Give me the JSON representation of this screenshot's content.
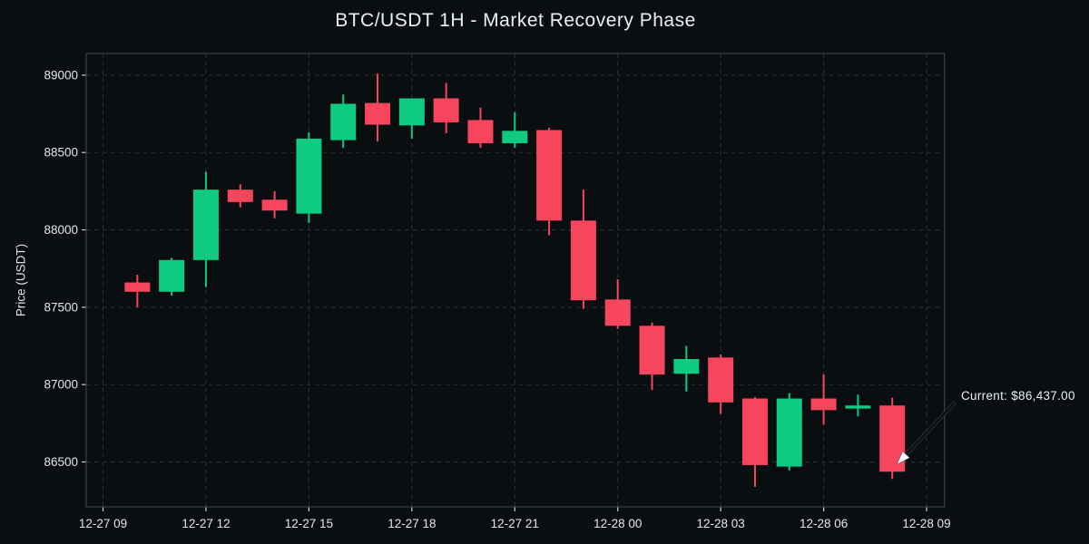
{
  "title": "BTC/USDT 1H - Market Recovery Phase",
  "y_axis_label": "Price (USDT)",
  "annotation": {
    "label": "Current: $86,437.00",
    "current_price": 86437
  },
  "colors": {
    "background": "#0b0e11",
    "up": "#0ecb81",
    "down": "#f6465d",
    "grid": "#2b313b",
    "spine": "#39404c",
    "tick_mark": "#c9ced5",
    "tick_text": "#e2e5ea",
    "arrow_shaft": "#0e1013",
    "arrow_shaft_edge": "#3c424b",
    "arrow_head": "#f4f5f7"
  },
  "chart_data": {
    "type": "candlestick",
    "symbol": "BTC/USDT",
    "interval": "1H",
    "title": "BTC/USDT 1H - Market Recovery Phase",
    "ylabel": "Price (USDT)",
    "grid": true,
    "ylim": [
      86210,
      89140
    ],
    "y_ticks": [
      89000,
      88500,
      88000,
      87500,
      87000,
      86500
    ],
    "x_tick_labels": [
      "12-27 09",
      "12-27 12",
      "12-27 15",
      "12-27 18",
      "12-27 21",
      "12-28 00",
      "12-28 03",
      "12-28 06",
      "12-28 09"
    ],
    "candles": [
      {
        "time": "12-27 10:00",
        "open": 87660,
        "high": 87710,
        "low": 87500,
        "close": 87600
      },
      {
        "time": "12-27 11:00",
        "open": 87600,
        "high": 87820,
        "low": 87575,
        "close": 87805
      },
      {
        "time": "12-27 12:00",
        "open": 87805,
        "high": 88375,
        "low": 87630,
        "close": 88260
      },
      {
        "time": "12-27 13:00",
        "open": 88260,
        "high": 88295,
        "low": 88145,
        "close": 88180
      },
      {
        "time": "12-27 14:00",
        "open": 88195,
        "high": 88250,
        "low": 88075,
        "close": 88125
      },
      {
        "time": "12-27 15:00",
        "open": 88105,
        "high": 88630,
        "low": 88045,
        "close": 88590
      },
      {
        "time": "12-27 16:00",
        "open": 88580,
        "high": 88875,
        "low": 88530,
        "close": 88815
      },
      {
        "time": "12-27 17:00",
        "open": 88820,
        "high": 89010,
        "low": 88570,
        "close": 88680
      },
      {
        "time": "12-27 18:00",
        "open": 88675,
        "high": 88850,
        "low": 88590,
        "close": 88850
      },
      {
        "time": "12-27 19:00",
        "open": 88850,
        "high": 88950,
        "low": 88625,
        "close": 88695
      },
      {
        "time": "12-27 20:00",
        "open": 88710,
        "high": 88790,
        "low": 88530,
        "close": 88560
      },
      {
        "time": "12-27 21:00",
        "open": 88560,
        "high": 88760,
        "low": 88530,
        "close": 88640
      },
      {
        "time": "12-27 22:00",
        "open": 88645,
        "high": 88660,
        "low": 87965,
        "close": 88060
      },
      {
        "time": "12-27 23:00",
        "open": 88060,
        "high": 88260,
        "low": 87490,
        "close": 87545
      },
      {
        "time": "12-28 00:00",
        "open": 87550,
        "high": 87680,
        "low": 87360,
        "close": 87380
      },
      {
        "time": "12-28 01:00",
        "open": 87380,
        "high": 87400,
        "low": 86965,
        "close": 87065
      },
      {
        "time": "12-28 02:00",
        "open": 87070,
        "high": 87250,
        "low": 86955,
        "close": 87165
      },
      {
        "time": "12-28 03:00",
        "open": 87175,
        "high": 87195,
        "low": 86810,
        "close": 86885
      },
      {
        "time": "12-28 04:00",
        "open": 86910,
        "high": 86920,
        "low": 86340,
        "close": 86480
      },
      {
        "time": "12-28 05:00",
        "open": 86470,
        "high": 86945,
        "low": 86445,
        "close": 86910
      },
      {
        "time": "12-28 06:00",
        "open": 86910,
        "high": 87065,
        "low": 86740,
        "close": 86835
      },
      {
        "time": "12-28 07:00",
        "open": 86845,
        "high": 86935,
        "low": 86795,
        "close": 86865
      },
      {
        "time": "12-28 08:00",
        "open": 86865,
        "high": 86915,
        "low": 86390,
        "close": 86437
      }
    ]
  }
}
